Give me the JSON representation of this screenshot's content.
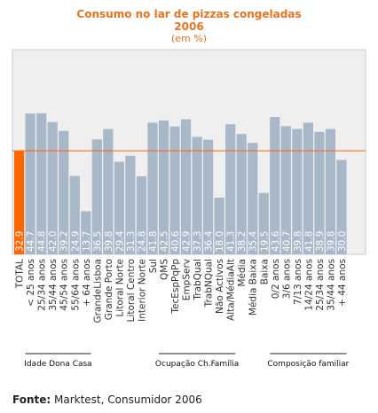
{
  "chart_data": {
    "type": "bar",
    "title": "Consumo no lar de pizzas congeladas",
    "subtitle": "2006",
    "unit_label": "(em %)",
    "categories": [
      "TOTAL",
      "< 25 anos",
      "25/34 anos",
      "35/44 anos",
      "45/54 anos",
      "55/64 anos",
      "+ 64 anos",
      "GrandeLisboa",
      "Grande Porto",
      "Litoral Norte",
      "Litoral Centro",
      "Interior Norte",
      "Sul",
      "QMS",
      "TecEspPqPp",
      "EmpServ",
      "TrabQual",
      "TrabNQual",
      "Não Activos",
      "Alta/MédiaAlt",
      "Média",
      "Média Baixa",
      "Baixa",
      "0/2 anos",
      "3/6 anos",
      "7/13 anos",
      "14/24 anos",
      "25/34 anos",
      "35/44 anos",
      "+ 44 anos"
    ],
    "values": [
      "32.9",
      "44.7",
      "44.8",
      "42.0",
      "39.2",
      "24.9",
      "13.7",
      "36.5",
      "39.8",
      "29.4",
      "31.3",
      "24.8",
      "41.8",
      "42.5",
      "40.6",
      "42.9",
      "37.3",
      "36.4",
      "18.0",
      "41.3",
      "38.2",
      "35.4",
      "19.5",
      "43.6",
      "40.7",
      "39.8",
      "41.8",
      "38.9",
      "39.8",
      "30.0"
    ],
    "highlight_color": "#ff6600",
    "bar_color": "#a9b8c9",
    "reference_line_value": 32.9,
    "groups": [
      {
        "label": "Idade Dona Casa",
        "from": 1,
        "to": 6
      },
      {
        "label": "Ocupação Ch.Família",
        "from": 13,
        "to": 19
      },
      {
        "label": "Composição familiar",
        "from": 23,
        "to": 29
      }
    ]
  },
  "source": {
    "label": "Fonte:",
    "text": "Marktest, Consumidor 2006"
  }
}
